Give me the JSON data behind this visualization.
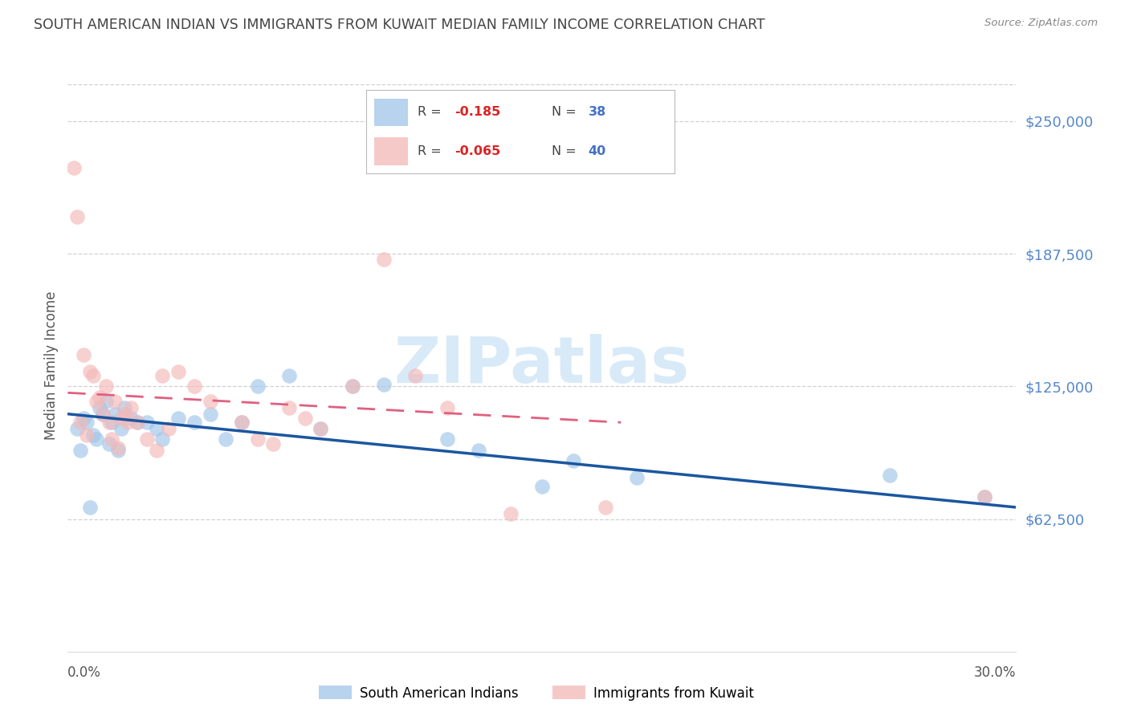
{
  "title": "SOUTH AMERICAN INDIAN VS IMMIGRANTS FROM KUWAIT MEDIAN FAMILY INCOME CORRELATION CHART",
  "source": "Source: ZipAtlas.com",
  "ylabel": "Median Family Income",
  "ytick_labels": [
    "$62,500",
    "$125,000",
    "$187,500",
    "$250,000"
  ],
  "ytick_values": [
    62500,
    125000,
    187500,
    250000
  ],
  "ylim": [
    0,
    270000
  ],
  "xlim": [
    0.0,
    0.3
  ],
  "legend_blue_label": "South American Indians",
  "legend_pink_label": "Immigrants from Kuwait",
  "legend_r_blue": "R =  -0.185",
  "legend_n_blue": "N = 38",
  "legend_r_pink": "R =  -0.065",
  "legend_n_pink": "N = 40",
  "blue_scatter_x": [
    0.003,
    0.004,
    0.005,
    0.006,
    0.007,
    0.008,
    0.009,
    0.01,
    0.011,
    0.012,
    0.013,
    0.014,
    0.015,
    0.016,
    0.017,
    0.018,
    0.02,
    0.022,
    0.025,
    0.028,
    0.03,
    0.035,
    0.04,
    0.045,
    0.05,
    0.055,
    0.06,
    0.07,
    0.08,
    0.09,
    0.1,
    0.12,
    0.13,
    0.15,
    0.16,
    0.18,
    0.26,
    0.29
  ],
  "blue_scatter_y": [
    105000,
    95000,
    110000,
    108000,
    68000,
    102000,
    100000,
    115000,
    112000,
    118000,
    98000,
    108000,
    112000,
    95000,
    105000,
    115000,
    110000,
    108000,
    108000,
    105000,
    100000,
    110000,
    108000,
    112000,
    100000,
    108000,
    125000,
    130000,
    105000,
    125000,
    126000,
    100000,
    95000,
    78000,
    90000,
    82000,
    83000,
    73000
  ],
  "pink_scatter_x": [
    0.002,
    0.003,
    0.004,
    0.005,
    0.006,
    0.007,
    0.008,
    0.009,
    0.01,
    0.011,
    0.012,
    0.013,
    0.014,
    0.015,
    0.016,
    0.017,
    0.018,
    0.019,
    0.02,
    0.022,
    0.025,
    0.028,
    0.03,
    0.032,
    0.035,
    0.04,
    0.045,
    0.055,
    0.06,
    0.065,
    0.07,
    0.075,
    0.08,
    0.09,
    0.1,
    0.11,
    0.12,
    0.14,
    0.17,
    0.29
  ],
  "pink_scatter_y": [
    228000,
    205000,
    108000,
    140000,
    102000,
    132000,
    130000,
    118000,
    120000,
    112000,
    125000,
    108000,
    100000,
    118000,
    96000,
    110000,
    112000,
    108000,
    115000,
    108000,
    100000,
    95000,
    130000,
    105000,
    132000,
    125000,
    118000,
    108000,
    100000,
    98000,
    115000,
    110000,
    105000,
    125000,
    185000,
    130000,
    115000,
    65000,
    68000,
    73000
  ],
  "blue_line_x": [
    0.0,
    0.3
  ],
  "blue_line_y": [
    112000,
    68000
  ],
  "pink_line_x": [
    0.0,
    0.175
  ],
  "pink_line_y": [
    122000,
    108000
  ],
  "blue_color": "#9fc5e8",
  "pink_color": "#f4b8b8",
  "blue_line_color": "#1a56a0",
  "pink_line_color": "#e06080",
  "pink_line_dash": [
    8,
    5
  ],
  "watermark_text": "ZIPatlas",
  "watermark_color": "#d8eaf8",
  "ytick_color": "#5588cc",
  "grid_color": "#cccccc",
  "background_color": "#ffffff",
  "title_color": "#444444",
  "source_color": "#888888",
  "ylabel_color": "#555555"
}
